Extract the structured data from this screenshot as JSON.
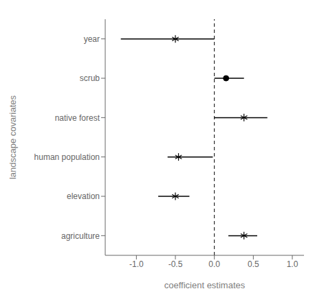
{
  "chart_data": {
    "type": "forest",
    "orientation": "horizontal",
    "xlabel": "coefficient estimates",
    "ylabel": "landscape covariates",
    "categories": [
      "year",
      "scrub",
      "native forest",
      "human population",
      "elevation",
      "agriculture"
    ],
    "color": "#000000",
    "series": [
      {
        "marker": "asterisk",
        "values": [
          -0.5,
          null,
          0.38,
          -0.46,
          -0.5,
          0.38
        ]
      },
      {
        "marker": "circle",
        "values": [
          null,
          0.15,
          null,
          null,
          null,
          null
        ]
      }
    ],
    "ci_low": [
      -1.2,
      0.0,
      0.0,
      -0.6,
      -0.72,
      0.18
    ],
    "ci_high": [
      0.0,
      0.38,
      0.68,
      -0.02,
      -0.32,
      0.55
    ],
    "xlim": [
      -1.4,
      1.15
    ],
    "xticks": [
      {
        "value": -1.0,
        "label": "-1.0"
      },
      -0.5,
      {
        "value": 0.0,
        "label": "0.0"
      },
      0.5,
      {
        "value": 1.0,
        "label": "1.0"
      }
    ],
    "vline_x": 0.0
  }
}
